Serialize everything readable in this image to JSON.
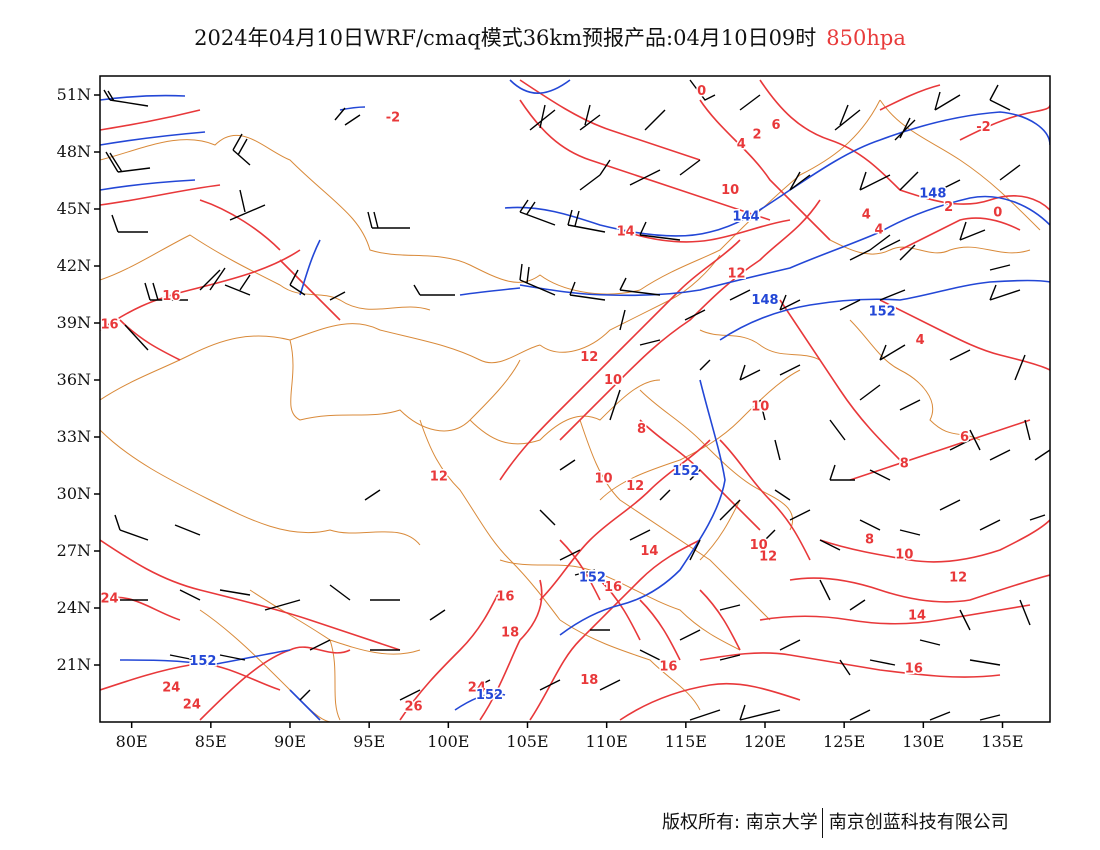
{
  "title": {
    "main": "2024年04月10日WRF/cmaq模式36km预报产品:04月10日09时",
    "level": "850hpa"
  },
  "credits": {
    "left": "版权所有: 南京大学",
    "right": "南京创蓝科技有限公司"
  },
  "colors": {
    "temperature": "#e8383a",
    "height": "#2347d6",
    "border": "#d98a3a",
    "wind": "#000000",
    "level_text": "#e83a3a"
  },
  "map_data": {
    "type": "weather-map",
    "lon_range": [
      78,
      138
    ],
    "lat_range": [
      18,
      52
    ],
    "x_ticks": [
      {
        "lon": 80,
        "label": "80E"
      },
      {
        "lon": 85,
        "label": "85E"
      },
      {
        "lon": 90,
        "label": "90E"
      },
      {
        "lon": 95,
        "label": "95E"
      },
      {
        "lon": 100,
        "label": "100E"
      },
      {
        "lon": 105,
        "label": "105E"
      },
      {
        "lon": 110,
        "label": "110E"
      },
      {
        "lon": 115,
        "label": "115E"
      },
      {
        "lon": 120,
        "label": "120E"
      },
      {
        "lon": 125,
        "label": "125E"
      },
      {
        "lon": 130,
        "label": "130E"
      },
      {
        "lon": 135,
        "label": "135E"
      }
    ],
    "y_ticks": [
      {
        "lat": 51,
        "label": "51N"
      },
      {
        "lat": 48,
        "label": "48N"
      },
      {
        "lat": 45,
        "label": "45N"
      },
      {
        "lat": 42,
        "label": "42N"
      },
      {
        "lat": 39,
        "label": "39N"
      },
      {
        "lat": 36,
        "label": "36N"
      },
      {
        "lat": 33,
        "label": "33N"
      },
      {
        "lat": 30,
        "label": "30N"
      },
      {
        "lat": 27,
        "label": "27N"
      },
      {
        "lat": 24,
        "label": "24N"
      },
      {
        "lat": 21,
        "label": "21N"
      }
    ],
    "temperature_labels": [
      {
        "lon": 96.5,
        "lat": 49.6,
        "text": "-2"
      },
      {
        "lon": 82.5,
        "lat": 40.2,
        "text": "16"
      },
      {
        "lon": 78.6,
        "lat": 38.7,
        "text": "16"
      },
      {
        "lon": 78.6,
        "lat": 24.3,
        "text": "24"
      },
      {
        "lon": 82.5,
        "lat": 19.6,
        "text": "24"
      },
      {
        "lon": 83.8,
        "lat": 18.7,
        "text": "24"
      },
      {
        "lon": 97.8,
        "lat": 18.6,
        "text": "26"
      },
      {
        "lon": 101.8,
        "lat": 19.6,
        "text": "24"
      },
      {
        "lon": 99.4,
        "lat": 30.7,
        "text": "12"
      },
      {
        "lon": 103.6,
        "lat": 24.4,
        "text": "16"
      },
      {
        "lon": 103.9,
        "lat": 22.5,
        "text": "18"
      },
      {
        "lon": 108.9,
        "lat": 20.0,
        "text": "18"
      },
      {
        "lon": 110.4,
        "lat": 24.9,
        "text": "16"
      },
      {
        "lon": 113.9,
        "lat": 20.7,
        "text": "16"
      },
      {
        "lon": 112.7,
        "lat": 26.8,
        "text": "14"
      },
      {
        "lon": 108.9,
        "lat": 37.0,
        "text": "12"
      },
      {
        "lon": 110.4,
        "lat": 35.8,
        "text": "10"
      },
      {
        "lon": 112.2,
        "lat": 33.2,
        "text": "8"
      },
      {
        "lon": 109.8,
        "lat": 30.6,
        "text": "10"
      },
      {
        "lon": 111.8,
        "lat": 30.2,
        "text": "12"
      },
      {
        "lon": 111.2,
        "lat": 43.6,
        "text": "14"
      },
      {
        "lon": 117.8,
        "lat": 45.8,
        "text": "10"
      },
      {
        "lon": 118.5,
        "lat": 48.2,
        "text": "4"
      },
      {
        "lon": 119.5,
        "lat": 48.7,
        "text": "2"
      },
      {
        "lon": 120.7,
        "lat": 49.2,
        "text": "6"
      },
      {
        "lon": 118.2,
        "lat": 41.4,
        "text": "12"
      },
      {
        "lon": 119.7,
        "lat": 34.4,
        "text": "10"
      },
      {
        "lon": 119.6,
        "lat": 27.1,
        "text": "10"
      },
      {
        "lon": 120.2,
        "lat": 26.5,
        "text": "12"
      },
      {
        "lon": 116.0,
        "lat": 51.0,
        "text": "0"
      },
      {
        "lon": 126.4,
        "lat": 44.5,
        "text": "4"
      },
      {
        "lon": 127.2,
        "lat": 43.7,
        "text": "4"
      },
      {
        "lon": 131.6,
        "lat": 44.9,
        "text": "2"
      },
      {
        "lon": 134.7,
        "lat": 44.6,
        "text": "0"
      },
      {
        "lon": 133.8,
        "lat": 49.1,
        "text": "-2"
      },
      {
        "lon": 129.8,
        "lat": 37.9,
        "text": "4"
      },
      {
        "lon": 132.6,
        "lat": 32.8,
        "text": "6"
      },
      {
        "lon": 128.8,
        "lat": 31.4,
        "text": "8"
      },
      {
        "lon": 126.6,
        "lat": 27.4,
        "text": "8"
      },
      {
        "lon": 128.8,
        "lat": 26.6,
        "text": "10"
      },
      {
        "lon": 132.2,
        "lat": 25.4,
        "text": "12"
      },
      {
        "lon": 129.6,
        "lat": 23.4,
        "text": "14"
      },
      {
        "lon": 129.4,
        "lat": 20.6,
        "text": "16"
      }
    ],
    "height_labels": [
      {
        "lon": 118.8,
        "lat": 44.4,
        "text": "144"
      },
      {
        "lon": 120.0,
        "lat": 40.0,
        "text": "148"
      },
      {
        "lon": 130.6,
        "lat": 45.6,
        "text": "148"
      },
      {
        "lon": 127.4,
        "lat": 39.4,
        "text": "152"
      },
      {
        "lon": 115.0,
        "lat": 31.0,
        "text": "152"
      },
      {
        "lon": 109.1,
        "lat": 25.4,
        "text": "152"
      },
      {
        "lon": 84.5,
        "lat": 21.0,
        "text": "152"
      },
      {
        "lon": 102.6,
        "lat": 19.2,
        "text": "152"
      }
    ]
  }
}
